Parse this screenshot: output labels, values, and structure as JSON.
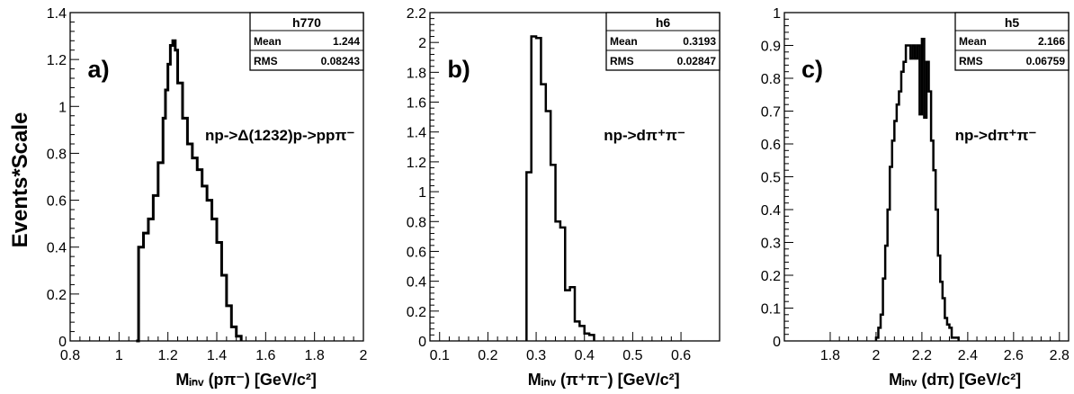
{
  "y_axis_label": "Events*Scale",
  "chart_data": [
    {
      "type": "histogram",
      "panel_label": "a)",
      "annotation": "np->Δ(1232)p->ppπ⁻",
      "stats_box": {
        "title": "h770",
        "rows": [
          {
            "label": "Mean",
            "value": "1.244"
          },
          {
            "label": "RMS",
            "value": "0.08243"
          }
        ]
      },
      "xlabel": "Mᵢₙᵥ (pπ⁻)   [GeV/c²]",
      "xlim": [
        0.8,
        2.0
      ],
      "ylim": [
        0,
        1.4
      ],
      "x_ticks": [
        "0.8",
        "1",
        "1.2",
        "1.4",
        "1.6",
        "1.8",
        "2"
      ],
      "y_ticks": [
        "0",
        "0.2",
        "0.4",
        "0.6",
        "0.8",
        "1",
        "1.2",
        "1.4"
      ],
      "series": [
        {
          "values": [
            [
              1.07,
              0
            ],
            [
              1.08,
              0.4
            ],
            [
              1.1,
              0.46
            ],
            [
              1.12,
              0.52
            ],
            [
              1.14,
              0.62
            ],
            [
              1.16,
              0.76
            ],
            [
              1.18,
              0.95
            ],
            [
              1.19,
              1.07
            ],
            [
              1.2,
              1.18
            ],
            [
              1.21,
              1.26
            ],
            [
              1.22,
              1.28
            ],
            [
              1.23,
              1.24
            ],
            [
              1.24,
              1.1
            ],
            [
              1.26,
              0.95
            ],
            [
              1.28,
              0.84
            ],
            [
              1.3,
              0.78
            ],
            [
              1.32,
              0.73
            ],
            [
              1.34,
              0.66
            ],
            [
              1.36,
              0.6
            ],
            [
              1.38,
              0.52
            ],
            [
              1.4,
              0.42
            ],
            [
              1.42,
              0.28
            ],
            [
              1.44,
              0.15
            ],
            [
              1.46,
              0.06
            ],
            [
              1.48,
              0.02
            ],
            [
              1.5,
              0
            ]
          ]
        }
      ]
    },
    {
      "type": "histogram",
      "panel_label": "b)",
      "annotation": "np->dπ⁺π⁻",
      "stats_box": {
        "title": "h6",
        "rows": [
          {
            "label": "Mean",
            "value": "0.3193"
          },
          {
            "label": "RMS",
            "value": "0.02847"
          }
        ]
      },
      "xlabel": "Mᵢₙᵥ (π⁺π⁻)   [GeV/c²]",
      "xlim": [
        0.08,
        0.68
      ],
      "ylim": [
        0,
        2.2
      ],
      "x_ticks": [
        "0.1",
        "0.2",
        "0.3",
        "0.4",
        "0.5",
        "0.6"
      ],
      "y_ticks": [
        "0",
        "0.2",
        "0.4",
        "0.6",
        "0.8",
        "1",
        "1.2",
        "1.4",
        "1.6",
        "1.8",
        "2",
        "2.2"
      ],
      "series": [
        {
          "values": [
            [
              0.28,
              1.13
            ],
            [
              0.29,
              2.04
            ],
            [
              0.3,
              2.03
            ],
            [
              0.31,
              1.72
            ],
            [
              0.32,
              1.54
            ],
            [
              0.33,
              1.18
            ],
            [
              0.34,
              0.8
            ],
            [
              0.35,
              0.76
            ],
            [
              0.36,
              0.34
            ],
            [
              0.37,
              0.36
            ],
            [
              0.38,
              0.13
            ],
            [
              0.39,
              0.1
            ],
            [
              0.4,
              0.05
            ],
            [
              0.41,
              0.04
            ],
            [
              0.42,
              0
            ]
          ]
        }
      ]
    },
    {
      "type": "histogram",
      "panel_label": "c)",
      "annotation": "np->dπ⁺π⁻",
      "stats_box": {
        "title": "h5",
        "rows": [
          {
            "label": "Mean",
            "value": "2.166"
          },
          {
            "label": "RMS",
            "value": "0.06759"
          }
        ]
      },
      "xlabel": "Mᵢₙᵥ (dπ)   [GeV/c²]",
      "xlim": [
        1.6,
        2.84
      ],
      "ylim": [
        0,
        1.0
      ],
      "x_ticks": [
        "1.8",
        "2",
        "2.2",
        "2.4",
        "2.6",
        "2.8"
      ],
      "y_ticks": [
        "0",
        "0.1",
        "0.2",
        "0.3",
        "0.4",
        "0.5",
        "0.6",
        "0.7",
        "0.8",
        "0.9",
        "1"
      ],
      "series": [
        {
          "values": [
            [
              2.0,
              0.01
            ],
            [
              2.01,
              0.04
            ],
            [
              2.02,
              0.08
            ],
            [
              2.03,
              0.19
            ],
            [
              2.04,
              0.29
            ],
            [
              2.05,
              0.4
            ],
            [
              2.06,
              0.53
            ],
            [
              2.07,
              0.61
            ],
            [
              2.08,
              0.67
            ],
            [
              2.09,
              0.72
            ],
            [
              2.1,
              0.76
            ],
            [
              2.11,
              0.82
            ],
            [
              2.12,
              0.85
            ],
            [
              2.13,
              0.9
            ],
            [
              2.14,
              0.9
            ],
            [
              2.15,
              0.86
            ],
            [
              2.16,
              0.9
            ],
            [
              2.17,
              0.86
            ],
            [
              2.18,
              0.9
            ],
            [
              2.19,
              0.69
            ],
            [
              2.2,
              0.92
            ],
            [
              2.21,
              0.68
            ],
            [
              2.22,
              0.85
            ],
            [
              2.23,
              0.76
            ],
            [
              2.24,
              0.61
            ],
            [
              2.25,
              0.52
            ],
            [
              2.26,
              0.4
            ],
            [
              2.27,
              0.26
            ],
            [
              2.28,
              0.18
            ],
            [
              2.29,
              0.13
            ],
            [
              2.3,
              0.07
            ],
            [
              2.31,
              0.05
            ],
            [
              2.32,
              0.04
            ],
            [
              2.33,
              0.01
            ],
            [
              2.34,
              0.01
            ],
            [
              2.35,
              0.01
            ],
            [
              2.36,
              0
            ]
          ]
        }
      ]
    }
  ]
}
